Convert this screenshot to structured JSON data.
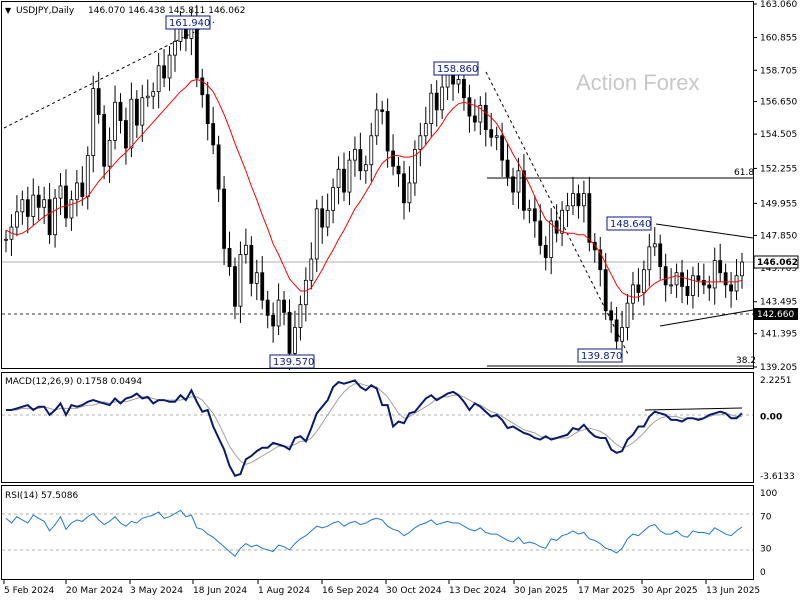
{
  "chart_data": [
    {
      "type": "candlestick",
      "header": {
        "symbol": "USDJPY,Daily",
        "ohlc": "146.070 146.438 145.811 146.062"
      },
      "watermark": "Action Forex",
      "y_ticks": [
        "163.060",
        "160.855",
        "158.705",
        "156.650",
        "154.505",
        "152.255",
        "149.955",
        "147.850",
        "145.705",
        "143.495",
        "141.395",
        "139.205"
      ],
      "x_labels": [
        "5 Feb 2024",
        "20 Mar 2024",
        "3 May 2024",
        "18 Jun 2024",
        "1 Aug 2024",
        "16 Sep 2024",
        "30 Oct 2024",
        "13 Dec 2024",
        "30 Jan 2025",
        "17 Mar 2025",
        "30 Apr 2025",
        "13 Jun 2025"
      ],
      "current_price": "146.062",
      "support_level": "142.660",
      "fib_labels": {
        "upper": "61.8",
        "lower": "38.2"
      },
      "annotations": [
        "161.940",
        "158.860",
        "148.640",
        "139.570",
        "139.870"
      ],
      "series": {
        "close": [
          147.6,
          148.4,
          149.4,
          150.2,
          149.1,
          150.5,
          149.7,
          150.2,
          147.9,
          150.3,
          151.1,
          149.0,
          150.2,
          151.3,
          150.4,
          153.1,
          157.5,
          155.8,
          152.4,
          154.1,
          156.6,
          155.4,
          153.6,
          156.8,
          155.1,
          156.9,
          157.0,
          157.3,
          159.0,
          158.2,
          159.7,
          160.6,
          161.5,
          160.8,
          161.9,
          158.2,
          157.1,
          155.2,
          153.8,
          150.9,
          147.0,
          145.8,
          143.2,
          146.6,
          147.2,
          144.7,
          145.4,
          143.6,
          142.6,
          141.9,
          143.6,
          142.8,
          140.1,
          141.8,
          143.3,
          144.9,
          146.3,
          149.6,
          148.4,
          149.5,
          151.0,
          152.2,
          150.7,
          152.8,
          153.5,
          152.1,
          152.5,
          154.4,
          156.1,
          156.0,
          153.4,
          152.4,
          151.9,
          150.0,
          151.3,
          153.5,
          154.4,
          155.2,
          157.2,
          156.1,
          157.6,
          158.4,
          157.8,
          158.1,
          156.9,
          155.7,
          155.3,
          156.4,
          154.8,
          154.3,
          154.4,
          152.8,
          151.7,
          150.7,
          152.1,
          149.5,
          149.6,
          148.8,
          147.2,
          146.4,
          148.8,
          148.0,
          149.5,
          149.8,
          150.6,
          149.8,
          150.6,
          147.4,
          146.9,
          145.6,
          142.9,
          142.3,
          140.9,
          141.8,
          143.4,
          144.6,
          144.1,
          145.6,
          147.1,
          147.3,
          145.8,
          144.6,
          144.6,
          145.4,
          144.5,
          143.9,
          145.2,
          144.9,
          144.6,
          144.4,
          146.2,
          145.4,
          144.6,
          144.2,
          145.2,
          146.1
        ],
        "ma": [
          148.2,
          148.0,
          147.9,
          148.0,
          148.2,
          148.5,
          148.8,
          149.1,
          149.3,
          149.5,
          149.7,
          149.8,
          149.9,
          150.0,
          150.2,
          150.4,
          150.9,
          151.4,
          151.8,
          152.2,
          152.6,
          153.0,
          153.3,
          153.7,
          154.1,
          154.5,
          154.9,
          155.3,
          155.7,
          156.1,
          156.5,
          156.9,
          157.3,
          157.6,
          158.0,
          158.1,
          158.0,
          157.7,
          157.3,
          156.6,
          155.8,
          154.9,
          153.9,
          153.0,
          152.1,
          151.1,
          150.2,
          149.2,
          148.3,
          147.3,
          146.6,
          145.8,
          145.0,
          144.6,
          144.2,
          144.2,
          144.4,
          145.0,
          145.6,
          146.3,
          146.9,
          147.6,
          148.2,
          148.9,
          149.6,
          150.1,
          150.7,
          151.3,
          152.0,
          152.6,
          152.9,
          153.1,
          153.1,
          153.0,
          153.0,
          153.1,
          153.4,
          153.8,
          154.3,
          154.7,
          155.2,
          155.8,
          156.2,
          156.5,
          156.6,
          156.5,
          156.4,
          156.2,
          155.9,
          155.6,
          155.2,
          154.6,
          153.9,
          153.2,
          152.6,
          151.9,
          151.2,
          150.4,
          149.6,
          148.9,
          148.6,
          148.3,
          148.1,
          148.0,
          148.0,
          147.9,
          147.9,
          147.6,
          147.2,
          146.7,
          146.0,
          145.3,
          144.6,
          144.1,
          143.9,
          143.8,
          143.8,
          144.0,
          144.4,
          144.7,
          144.9,
          145.0,
          145.1,
          145.2,
          145.1,
          145.0,
          144.9,
          144.8,
          144.8,
          144.8,
          144.8,
          144.8,
          144.8,
          144.8,
          144.8,
          144.9
        ]
      },
      "fib_level": 151.8
    },
    {
      "type": "line",
      "title": "MACD(12,26,9) 0.1758 0.0494",
      "y_ticks": [
        "2.2251",
        "0.00",
        "-3.6133"
      ],
      "series": [
        {
          "name": "MACD",
          "values": [
            0.4,
            0.4,
            0.5,
            0.6,
            0.7,
            0.4,
            0.6,
            0.6,
            0.1,
            0.4,
            0.8,
            0.1,
            0.7,
            0.6,
            0.7,
            0.9,
            1.0,
            0.9,
            0.8,
            0.7,
            1.1,
            0.8,
            1.1,
            1.2,
            1.4,
            1.1,
            1.2,
            0.8,
            1.0,
            1.0,
            0.9,
            0.9,
            1.3,
            1.0,
            1.6,
            0.9,
            0.3,
            0.4,
            -0.6,
            -1.3,
            -2.0,
            -3.0,
            -3.6,
            -3.5,
            -2.6,
            -2.4,
            -2.1,
            -1.9,
            -1.9,
            -1.6,
            -1.7,
            -1.8,
            -2.0,
            -1.3,
            -1.2,
            -1.5,
            -0.7,
            0.2,
            0.6,
            1.0,
            1.8,
            2.1,
            2.0,
            2.1,
            2.2,
            1.8,
            1.6,
            1.9,
            1.7,
            0.7,
            0.7,
            -0.6,
            -0.3,
            -0.4,
            0.2,
            0.3,
            0.7,
            1.1,
            1.3,
            1.0,
            1.2,
            1.4,
            1.5,
            1.3,
            0.9,
            0.4,
            0.8,
            0.6,
            0.3,
            0.0,
            0.1,
            -0.2,
            -0.7,
            -0.6,
            -0.8,
            -1.0,
            -1.1,
            -1.3,
            -1.4,
            -1.2,
            -1.4,
            -1.3,
            -1.2,
            -1.1,
            -0.7,
            -0.8,
            -0.5,
            -0.9,
            -1.2,
            -1.3,
            -1.3,
            -2.0,
            -2.2,
            -2.1,
            -1.4,
            -1.1,
            -0.6,
            -0.6,
            0.0,
            0.3,
            0.2,
            0.1,
            -0.2,
            -0.2,
            -0.3,
            -0.1,
            -0.1,
            -0.2,
            -0.1,
            0.1,
            0.2,
            0.3,
            0.2,
            -0.1,
            -0.1,
            0.2
          ]
        },
        {
          "name": "Signal",
          "values": [
            0.4,
            0.4,
            0.4,
            0.5,
            0.5,
            0.5,
            0.5,
            0.6,
            0.5,
            0.4,
            0.5,
            0.5,
            0.5,
            0.5,
            0.6,
            0.7,
            0.7,
            0.8,
            0.9,
            0.8,
            0.9,
            0.9,
            0.9,
            1.0,
            1.1,
            1.2,
            1.2,
            1.1,
            1.0,
            1.0,
            1.0,
            1.0,
            1.0,
            1.1,
            1.2,
            1.2,
            1.0,
            0.6,
            0.2,
            -0.4,
            -1.1,
            -1.8,
            -2.3,
            -2.7,
            -2.9,
            -2.8,
            -2.6,
            -2.4,
            -2.2,
            -2.0,
            -1.8,
            -1.8,
            -1.8,
            -1.7,
            -1.5,
            -1.5,
            -1.3,
            -0.9,
            -0.4,
            0.1,
            0.6,
            1.1,
            1.5,
            1.8,
            2.0,
            2.0,
            1.9,
            1.8,
            1.8,
            1.5,
            1.2,
            0.7,
            0.2,
            -0.1,
            0.0,
            0.2,
            0.4,
            0.6,
            0.8,
            1.1,
            1.2,
            1.2,
            1.3,
            1.3,
            1.2,
            1.0,
            0.8,
            0.7,
            0.5,
            0.3,
            0.2,
            0.0,
            -0.2,
            -0.4,
            -0.6,
            -0.8,
            -0.9,
            -1.0,
            -1.2,
            -1.3,
            -1.3,
            -1.3,
            -1.3,
            -1.3,
            -1.1,
            -0.9,
            -0.8,
            -0.7,
            -0.8,
            -0.9,
            -1.1,
            -1.4,
            -1.7,
            -1.9,
            -1.8,
            -1.6,
            -1.3,
            -1.0,
            -0.6,
            -0.3,
            -0.1,
            0.0,
            0.0,
            0.0,
            -0.1,
            -0.1,
            -0.1,
            -0.1,
            -0.1,
            0.0,
            0.1,
            0.1,
            0.2,
            0.1,
            0.0,
            0.0
          ]
        }
      ],
      "trendline_label": ""
    },
    {
      "type": "line",
      "title": "RSI(14) 57.5086",
      "y_ticks": [
        "100",
        "70",
        "30",
        "0"
      ],
      "series": [
        {
          "name": "RSI",
          "values": [
            68,
            62,
            70,
            66,
            62,
            72,
            68,
            64,
            52,
            60,
            70,
            54,
            62,
            66,
            64,
            70,
            74,
            66,
            60,
            64,
            70,
            62,
            58,
            64,
            62,
            68,
            70,
            72,
            76,
            68,
            70,
            74,
            78,
            70,
            72,
            56,
            54,
            48,
            44,
            38,
            32,
            26,
            20,
            30,
            36,
            32,
            34,
            30,
            28,
            26,
            34,
            32,
            28,
            36,
            42,
            46,
            52,
            58,
            56,
            58,
            62,
            64,
            58,
            62,
            64,
            60,
            62,
            66,
            68,
            66,
            58,
            54,
            52,
            46,
            50,
            56,
            60,
            62,
            66,
            60,
            62,
            64,
            62,
            62,
            58,
            54,
            52,
            56,
            50,
            48,
            48,
            44,
            40,
            38,
            44,
            36,
            38,
            36,
            32,
            30,
            42,
            40,
            46,
            48,
            52,
            48,
            50,
            42,
            40,
            36,
            30,
            28,
            24,
            30,
            42,
            48,
            46,
            52,
            58,
            60,
            52,
            48,
            48,
            52,
            46,
            44,
            52,
            50,
            50,
            48,
            56,
            52,
            48,
            46,
            52,
            57
          ]
        }
      ]
    }
  ]
}
